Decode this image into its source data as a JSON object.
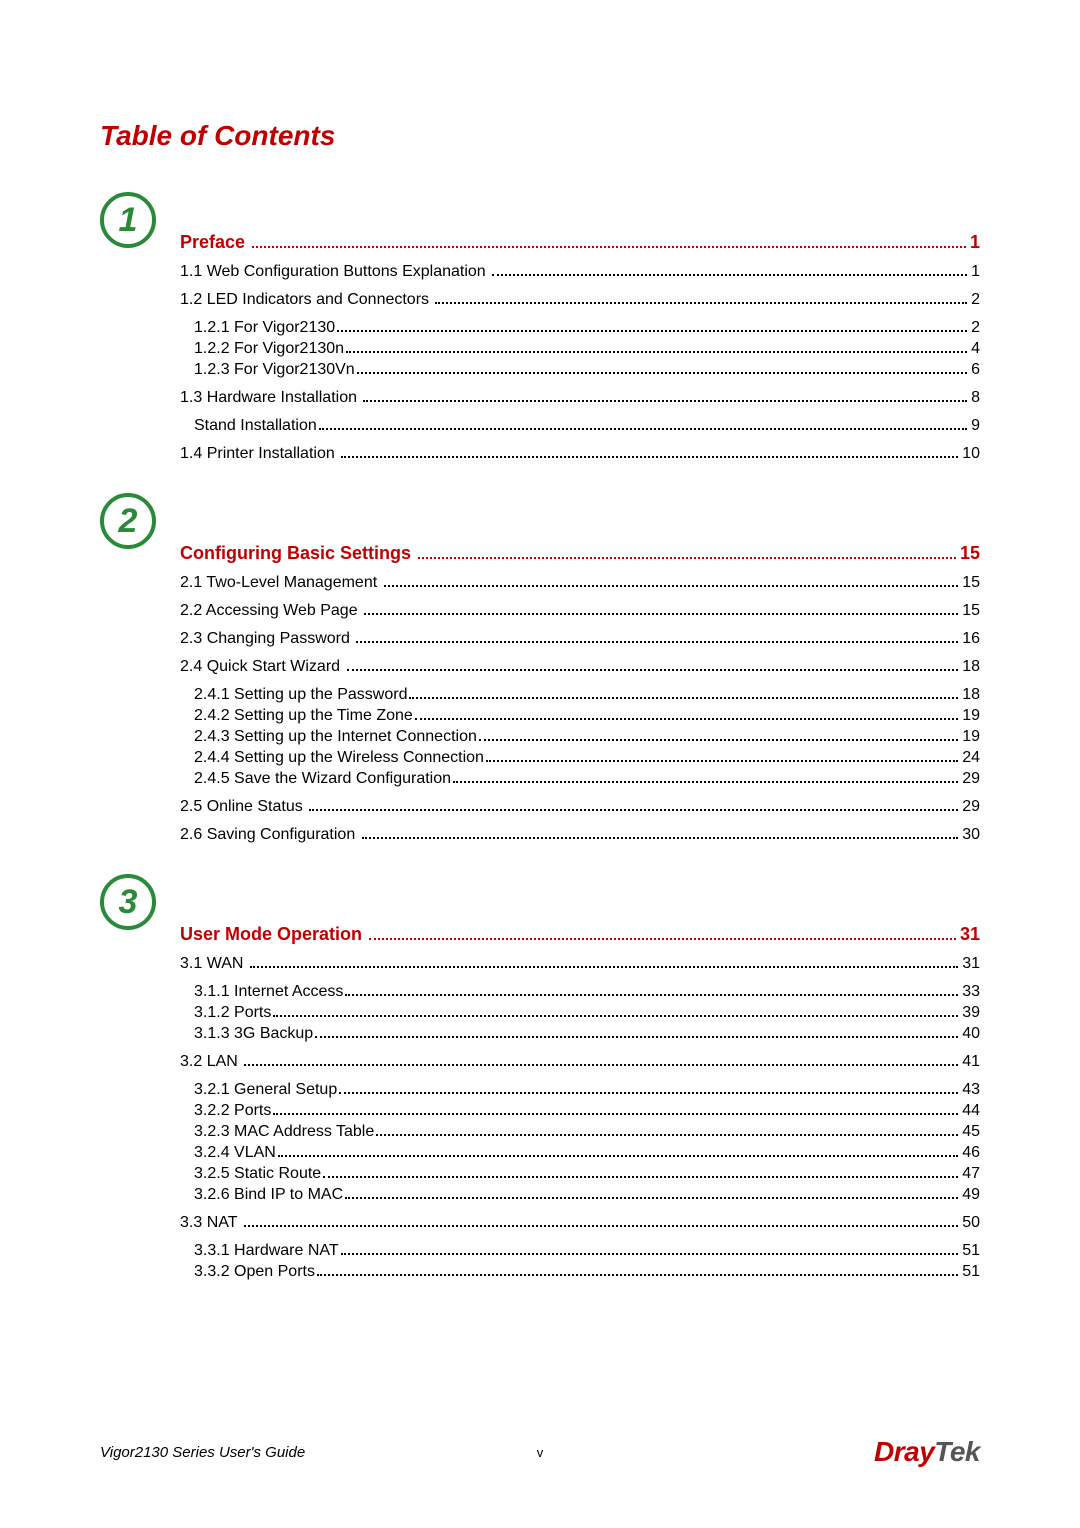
{
  "title": "Table of Contents",
  "colors": {
    "accent": "#c00000",
    "badge": "#2a8a3a",
    "text": "#000000",
    "bg": "#ffffff"
  },
  "chapters": [
    {
      "num": "1",
      "heading": {
        "label": "Preface",
        "page": "1"
      },
      "items": [
        {
          "lvl": 1,
          "label": "1.1 Web Configuration Buttons Explanation",
          "page": "1"
        },
        {
          "lvl": 1,
          "label": "1.2 LED Indicators and Connectors",
          "page": "2"
        },
        {
          "lvl": 2,
          "label": "1.2.1 For Vigor2130",
          "page": "2"
        },
        {
          "lvl": 2,
          "label": "1.2.2 For Vigor2130n",
          "page": "4"
        },
        {
          "lvl": 2,
          "label": "1.2.3 For Vigor2130Vn",
          "page": "6"
        },
        {
          "lvl": 1,
          "label": "1.3 Hardware Installation",
          "page": "8"
        },
        {
          "lvl": 2,
          "label": "Stand Installation",
          "page": "9"
        },
        {
          "lvl": 1,
          "label": "1.4 Printer Installation",
          "page": "10"
        }
      ]
    },
    {
      "num": "2",
      "heading": {
        "label": "Configuring Basic Settings",
        "page": "15"
      },
      "items": [
        {
          "lvl": 1,
          "label": "2.1 Two-Level Management",
          "page": "15"
        },
        {
          "lvl": 1,
          "label": "2.2 Accessing Web Page",
          "page": "15"
        },
        {
          "lvl": 1,
          "label": "2.3 Changing Password",
          "page": "16"
        },
        {
          "lvl": 1,
          "label": "2.4 Quick Start Wizard",
          "page": "18"
        },
        {
          "lvl": 2,
          "label": "2.4.1 Setting up the Password",
          "page": "18"
        },
        {
          "lvl": 2,
          "label": "2.4.2 Setting up the Time Zone",
          "page": "19"
        },
        {
          "lvl": 2,
          "label": "2.4.3 Setting up the Internet Connection",
          "page": "19"
        },
        {
          "lvl": 2,
          "label": "2.4.4 Setting up the Wireless Connection",
          "page": "24"
        },
        {
          "lvl": 2,
          "label": "2.4.5 Save the Wizard Configuration",
          "page": "29"
        },
        {
          "lvl": 1,
          "label": "2.5 Online Status",
          "page": "29"
        },
        {
          "lvl": 1,
          "label": "2.6 Saving Configuration",
          "page": "30"
        }
      ]
    },
    {
      "num": "3",
      "heading": {
        "label": "User Mode Operation",
        "page": "31"
      },
      "items": [
        {
          "lvl": 1,
          "label": "3.1 WAN",
          "page": "31"
        },
        {
          "lvl": 2,
          "label": "3.1.1 Internet Access",
          "page": "33"
        },
        {
          "lvl": 2,
          "label": "3.1.2 Ports",
          "page": "39"
        },
        {
          "lvl": 2,
          "label": "3.1.3 3G Backup",
          "page": "40"
        },
        {
          "lvl": 1,
          "label": "3.2 LAN",
          "page": "41"
        },
        {
          "lvl": 2,
          "label": "3.2.1 General Setup",
          "page": "43"
        },
        {
          "lvl": 2,
          "label": "3.2.2 Ports",
          "page": "44"
        },
        {
          "lvl": 2,
          "label": "3.2.3 MAC Address Table",
          "page": "45"
        },
        {
          "lvl": 2,
          "label": "3.2.4 VLAN",
          "page": "46"
        },
        {
          "lvl": 2,
          "label": "3.2.5 Static Route",
          "page": "47"
        },
        {
          "lvl": 2,
          "label": "3.2.6 Bind IP to MAC",
          "page": "49"
        },
        {
          "lvl": 1,
          "label": "3.3 NAT",
          "page": "50"
        },
        {
          "lvl": 2,
          "label": "3.3.1 Hardware NAT",
          "page": "51"
        },
        {
          "lvl": 2,
          "label": "3.3.2 Open Ports",
          "page": "51"
        }
      ]
    }
  ],
  "footer": {
    "left": "Vigor2130 Series User's Guide",
    "center": "v",
    "brand": {
      "part1": "Dray",
      "part2": "Tek"
    }
  }
}
